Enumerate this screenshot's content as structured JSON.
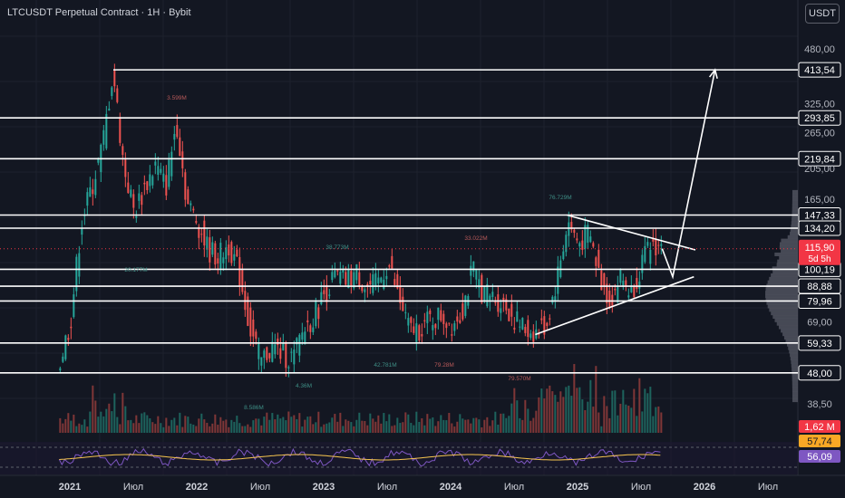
{
  "header": {
    "title": "LTCUSDT Perpetual Contract · 1H · Bybit",
    "currency_button": "USDT"
  },
  "colors": {
    "background": "#131722",
    "up": "#26a69a",
    "down": "#ef5350",
    "level_line": "#ffffff",
    "rsi_line": "#7e57c2",
    "rsi_ma": "#f9c74f",
    "current_price_label": "#f23645"
  },
  "chart_data": {
    "type": "candlestick",
    "y_scale": "log",
    "price_axis_ticks": [
      "480,00",
      "325,00",
      "265,00",
      "205,00",
      "165,00",
      "69,00",
      "38,50"
    ],
    "time_axis_ticks": [
      "2021",
      "Июл",
      "2022",
      "Июл",
      "2023",
      "Июл",
      "2024",
      "Июл",
      "2025",
      "Июл",
      "2026",
      "Июл"
    ],
    "horizontal_levels": [
      "413,54",
      "293,85",
      "219,84",
      "147,33",
      "134,20",
      "100,19",
      "88,88",
      "79,96",
      "59,33",
      "48,00"
    ],
    "current_price": {
      "value": "115,90",
      "countdown": "5d 5h"
    },
    "volume_label": "1,62 M",
    "rsi_labels": [
      "57,74",
      "56,09"
    ],
    "annotations": [
      "3.599M",
      "20.177M",
      "38.773M",
      "33.022M",
      "76.729M",
      "42.781M",
      "79.28M",
      "4.36M",
      "8.586M",
      "79.570M"
    ],
    "price_points": [
      {
        "t": "2020-12",
        "p": 52
      },
      {
        "t": "2021-01",
        "p": 70
      },
      {
        "t": "2021-02",
        "p": 140
      },
      {
        "t": "2021-03",
        "p": 180
      },
      {
        "t": "2021-04",
        "p": 240
      },
      {
        "t": "2021-05",
        "p": 410
      },
      {
        "t": "2021-06",
        "p": 210
      },
      {
        "t": "2021-07",
        "p": 150
      },
      {
        "t": "2021-08",
        "p": 180
      },
      {
        "t": "2021-09",
        "p": 210
      },
      {
        "t": "2021-10",
        "p": 180
      },
      {
        "t": "2021-11",
        "p": 290
      },
      {
        "t": "2021-12",
        "p": 160
      },
      {
        "t": "2022-01",
        "p": 140
      },
      {
        "t": "2022-02",
        "p": 115
      },
      {
        "t": "2022-03",
        "p": 110
      },
      {
        "t": "2022-04",
        "p": 120
      },
      {
        "t": "2022-05",
        "p": 95
      },
      {
        "t": "2022-06",
        "p": 65
      },
      {
        "t": "2022-07",
        "p": 52
      },
      {
        "t": "2022-08",
        "p": 58
      },
      {
        "t": "2022-09",
        "p": 55
      },
      {
        "t": "2022-10",
        "p": 53
      },
      {
        "t": "2022-11",
        "p": 65
      },
      {
        "t": "2022-12",
        "p": 72
      },
      {
        "t": "2023-01",
        "p": 85
      },
      {
        "t": "2023-02",
        "p": 95
      },
      {
        "t": "2023-03",
        "p": 92
      },
      {
        "t": "2023-04",
        "p": 98
      },
      {
        "t": "2023-05",
        "p": 88
      },
      {
        "t": "2023-06",
        "p": 90
      },
      {
        "t": "2023-07",
        "p": 105
      },
      {
        "t": "2023-08",
        "p": 82
      },
      {
        "t": "2023-09",
        "p": 65
      },
      {
        "t": "2023-10",
        "p": 66
      },
      {
        "t": "2023-11",
        "p": 70
      },
      {
        "t": "2023-12",
        "p": 72
      },
      {
        "t": "2024-01",
        "p": 68
      },
      {
        "t": "2024-02",
        "p": 75
      },
      {
        "t": "2024-03",
        "p": 100
      },
      {
        "t": "2024-04",
        "p": 85
      },
      {
        "t": "2024-05",
        "p": 82
      },
      {
        "t": "2024-06",
        "p": 78
      },
      {
        "t": "2024-07",
        "p": 70
      },
      {
        "t": "2024-08",
        "p": 65
      },
      {
        "t": "2024-09",
        "p": 64
      },
      {
        "t": "2024-10",
        "p": 68
      },
      {
        "t": "2024-11",
        "p": 95
      },
      {
        "t": "2024-12",
        "p": 140
      },
      {
        "t": "2025-01",
        "p": 120
      },
      {
        "t": "2025-02",
        "p": 130
      },
      {
        "t": "2025-03",
        "p": 95
      },
      {
        "t": "2025-04",
        "p": 80
      },
      {
        "t": "2025-05",
        "p": 95
      },
      {
        "t": "2025-06",
        "p": 85
      },
      {
        "t": "2025-07",
        "p": 105
      },
      {
        "t": "2025-08",
        "p": 120
      },
      {
        "t": "2025-09",
        "p": 116
      }
    ],
    "projection_path": [
      {
        "t": "2025-09",
        "p": 116
      },
      {
        "t": "2025-10",
        "p": 95
      },
      {
        "t": "2026-02",
        "p": 413.54
      }
    ],
    "triangle": {
      "upper": [
        {
          "t": "2024-12",
          "p": 147.33
        },
        {
          "t": "2025-10",
          "p": 115
        }
      ],
      "lower": [
        {
          "t": "2024-09",
          "p": 63
        },
        {
          "t": "2025-12",
          "p": 95
        }
      ]
    }
  }
}
